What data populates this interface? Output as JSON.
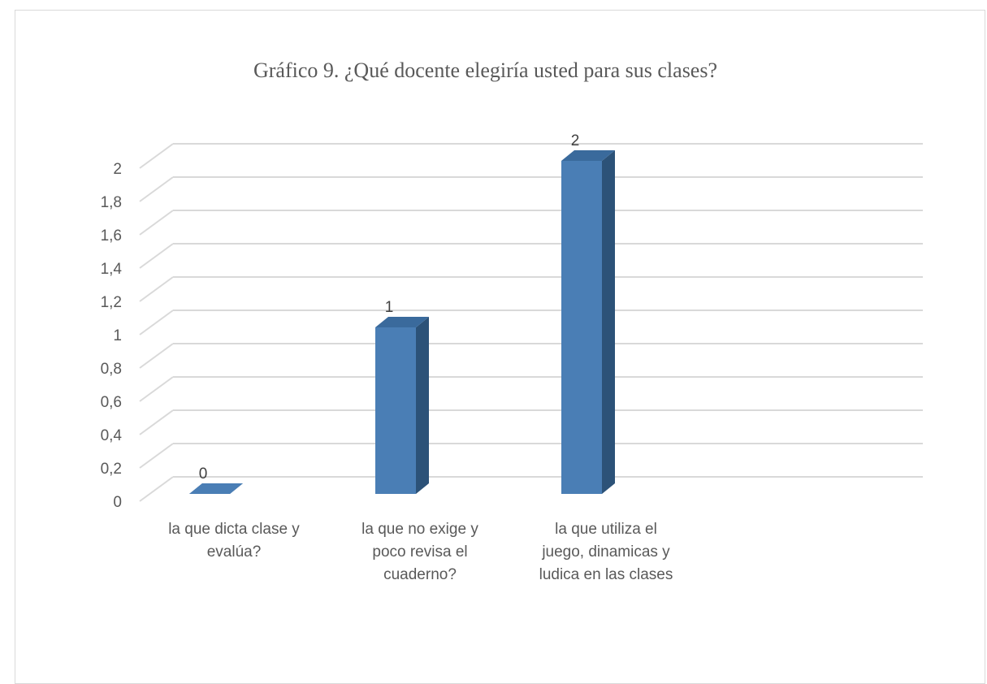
{
  "chart_data": {
    "type": "bar",
    "title": "Gráfico 9. ¿Qué docente elegiría usted para sus clases?",
    "categories": [
      [
        "la que dicta clase y",
        "evalúa?"
      ],
      [
        "la que no exige y",
        "poco revisa el",
        "cuaderno?"
      ],
      [
        "la que utiliza el",
        "juego, dinamicas y",
        "ludica en las clases"
      ]
    ],
    "values": [
      0,
      1,
      2
    ],
    "data_labels": [
      "0",
      "1",
      "2"
    ],
    "ylim": [
      0,
      2
    ],
    "yticks": [
      "0",
      "0,2",
      "0,4",
      "0,6",
      "0,8",
      "1",
      "1,2",
      "1,4",
      "1,6",
      "1,8",
      "2"
    ],
    "xlabel": "",
    "ylabel": "",
    "grid": true,
    "three_d": true,
    "colors": {
      "bar_front": "#4a7eb5",
      "bar_side": "#2c5278",
      "bar_top": "#3a6a9c",
      "grid": "#d9d9d9",
      "text": "#595959"
    }
  }
}
